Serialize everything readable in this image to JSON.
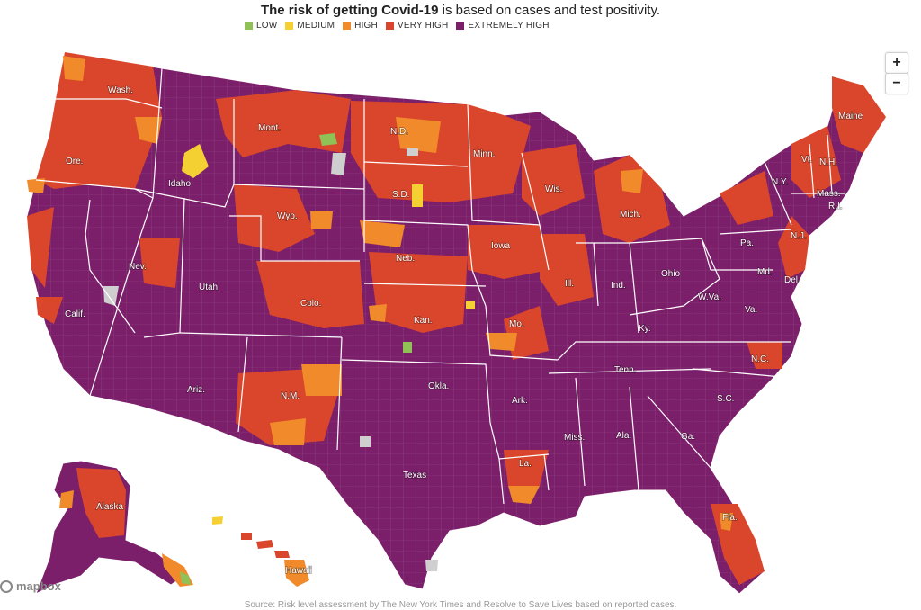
{
  "title": {
    "bold": "The risk of getting Covid-19",
    "rest": " is based on cases and test positivity."
  },
  "legend": [
    {
      "label": "LOW",
      "color": "#8fc157"
    },
    {
      "label": "MEDIUM",
      "color": "#f5d033"
    },
    {
      "label": "HIGH",
      "color": "#f08a2a"
    },
    {
      "label": "VERY HIGH",
      "color": "#d9462c"
    },
    {
      "label": "EXTREMELY HIGH",
      "color": "#7b1f6a"
    }
  ],
  "zoom": {
    "in": "+",
    "out": "−"
  },
  "attribution": "mapbox",
  "source": "Source: Risk level assessment by The New York Times and Resolve to Save Lives based on reported cases.",
  "states": {
    "wash": "Wash.",
    "ore": "Ore.",
    "calif": "Calif.",
    "idaho": "Idaho",
    "nev": "Nev.",
    "mont": "Mont.",
    "wyo": "Wyo.",
    "utah": "Utah",
    "ariz": "Ariz.",
    "colo": "Colo.",
    "nm": "N.M.",
    "nd": "N.D.",
    "sd": "S.D.",
    "neb": "Neb.",
    "kan": "Kan.",
    "okla": "Okla.",
    "texas": "Texas",
    "minn": "Minn.",
    "iowa": "Iowa",
    "mo": "Mo.",
    "ark": "Ark.",
    "la": "La.",
    "wis": "Wis.",
    "ill": "Ill.",
    "mich": "Mich.",
    "ind": "Ind.",
    "ohio": "Ohio",
    "ky": "Ky.",
    "tenn": "Tenn.",
    "miss": "Miss.",
    "ala": "Ala.",
    "ga": "Ga.",
    "fla": "Fla.",
    "sc": "S.C.",
    "nc": "N.C.",
    "va": "Va.",
    "wva": "W.Va.",
    "pa": "Pa.",
    "ny": "N.Y.",
    "nj": "N.J.",
    "md": "Md.",
    "del": "Del.",
    "vt": "Vt.",
    "nh": "N.H.",
    "maine": "Maine",
    "mass": "Mass.",
    "ri": "R.I.",
    "alaska": "Alaska",
    "hawaii": "Hawaii"
  }
}
